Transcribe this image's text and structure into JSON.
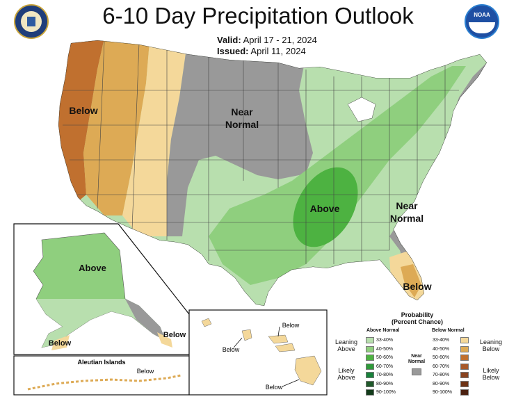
{
  "header": {
    "title": "6-10 Day Precipitation Outlook",
    "valid_label": "Valid:",
    "valid_value": "April 17 - 21, 2024",
    "issued_label": "Issued:",
    "issued_value": "April 11, 2024",
    "left_logo": "Department of Commerce seal",
    "right_logo": "NOAA",
    "right_logo_text": "NOAA"
  },
  "map_labels": {
    "west": "Below",
    "plains_1": "Near",
    "plains_2": "Normal",
    "southeast_core": "Above",
    "east_coast_1": "Near",
    "east_coast_2": "Normal",
    "florida": "Below",
    "alaska_main": "Above",
    "alaska_south": "Below",
    "alaska_panhandle": "Below",
    "aleutian_title": "Aleutian Islands",
    "aleutian_below": "Below",
    "hawaii_1": "Below",
    "hawaii_2": "Below",
    "hawaii_3": "Below"
  },
  "colors": {
    "above_33_40": "#b8dfae",
    "above_40_50": "#8fcf7e",
    "above_50_60": "#4db241",
    "near_normal": "#999999",
    "below_33_40": "#f4d89a",
    "below_40_50": "#ddaa55",
    "below_50_60": "#c0702f",
    "state_lines": "#444444"
  },
  "legend": {
    "title_1": "Probability",
    "title_2": "(Percent Chance)",
    "above_head": "Above Normal",
    "below_head": "Below Normal",
    "near_1": "Near",
    "near_2": "Normal",
    "leaning_above_1": "Leaning",
    "leaning_above_2": "Above",
    "likely_above_1": "Likely",
    "likely_above_2": "Above",
    "leaning_below_1": "Leaning",
    "leaning_below_2": "Below",
    "likely_below_1": "Likely",
    "likely_below_2": "Below",
    "above_rows": [
      {
        "label": "33-40%",
        "color": "#b8dfae"
      },
      {
        "label": "40-50%",
        "color": "#8fcf7e"
      },
      {
        "label": "50-60%",
        "color": "#4db241"
      },
      {
        "label": "60-70%",
        "color": "#2f9a3a"
      },
      {
        "label": "70-80%",
        "color": "#17823a"
      },
      {
        "label": "80-90%",
        "color": "#1f5a2a"
      },
      {
        "label": "90-100%",
        "color": "#123b1a"
      }
    ],
    "below_rows": [
      {
        "label": "33-40%",
        "color": "#f4d89a"
      },
      {
        "label": "40-50%",
        "color": "#ddaa55"
      },
      {
        "label": "50-60%",
        "color": "#c0702f"
      },
      {
        "label": "60-70%",
        "color": "#a85a2a"
      },
      {
        "label": "70-80%",
        "color": "#8a4420"
      },
      {
        "label": "80-90%",
        "color": "#6e3316"
      },
      {
        "label": "90-100%",
        "color": "#4a2010"
      }
    ]
  }
}
